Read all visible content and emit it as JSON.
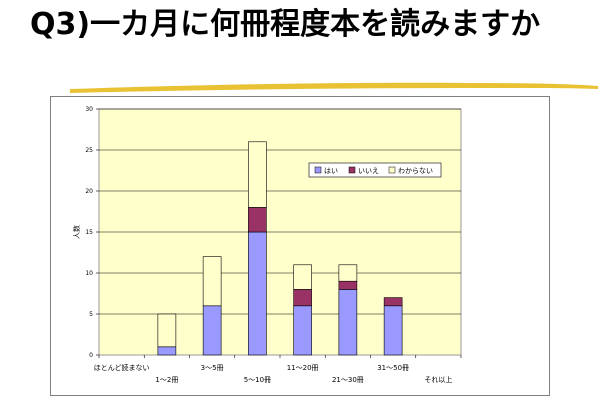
{
  "slide": {
    "title": "Q3)一カ月に何冊程度本を読みますか"
  },
  "colors": {
    "plot_bg": "#FFFFCC",
    "grid": "#000000",
    "swoosh": "#E8C232"
  },
  "chart_data": {
    "type": "bar",
    "stacked": true,
    "ylabel": "人数",
    "xlabel": "",
    "ylim": [
      0,
      30
    ],
    "yticks": [
      0,
      5,
      10,
      15,
      20,
      25,
      30
    ],
    "grid": true,
    "legend_position": "top-right",
    "categories": [
      "ほとんど読まない",
      "1～2冊",
      "3～5冊",
      "5～10冊",
      "11～20冊",
      "21～30冊",
      "31～50冊",
      "それ以上"
    ],
    "series": [
      {
        "name": "はい",
        "color": "#9999FF",
        "values": [
          0,
          1,
          6,
          15,
          6,
          8,
          6,
          0
        ]
      },
      {
        "name": "いいえ",
        "color": "#993366",
        "values": [
          0,
          0,
          0,
          3,
          2,
          1,
          1,
          0
        ]
      },
      {
        "name": "わからない",
        "color": "#FFFFCC",
        "values": [
          0,
          4,
          6,
          8,
          3,
          2,
          0,
          0
        ]
      }
    ]
  }
}
